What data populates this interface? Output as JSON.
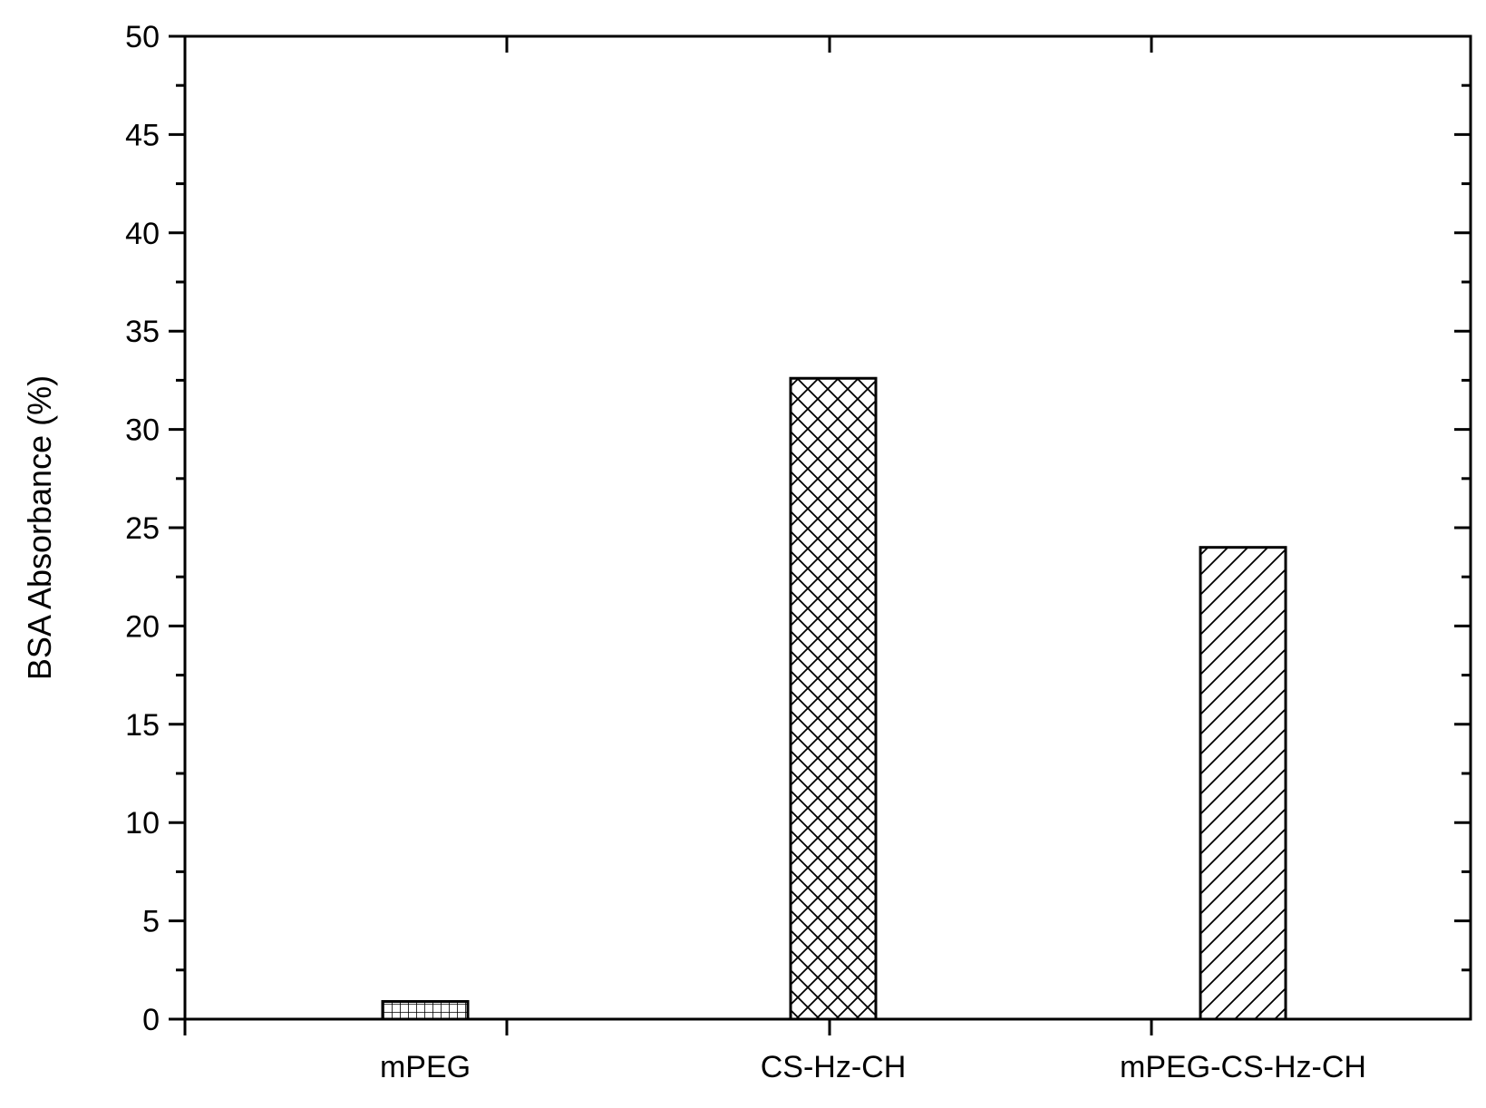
{
  "chart_data": {
    "type": "bar",
    "title": "",
    "xlabel": "",
    "ylabel": "BSA Absorbance (%)",
    "categories": [
      "mPEG",
      "CS-Hz-CH",
      "mPEG-CS-Hz-CH"
    ],
    "values": [
      0.9,
      32.6,
      24.0
    ],
    "patterns": [
      "grid-hatch",
      "cross-hatch",
      "diagonal-hatch"
    ],
    "ylim": [
      0,
      50
    ],
    "yticks": [
      0,
      5,
      10,
      15,
      20,
      25,
      30,
      35,
      40,
      45,
      50
    ],
    "ytick_labels": [
      "0",
      "5",
      "10",
      "15",
      "20",
      "25",
      "30",
      "35",
      "40",
      "45",
      "50"
    ],
    "grid": false,
    "legend": "none",
    "colors": {
      "bar_fill": "#ffffff",
      "stroke": "#000000"
    }
  }
}
